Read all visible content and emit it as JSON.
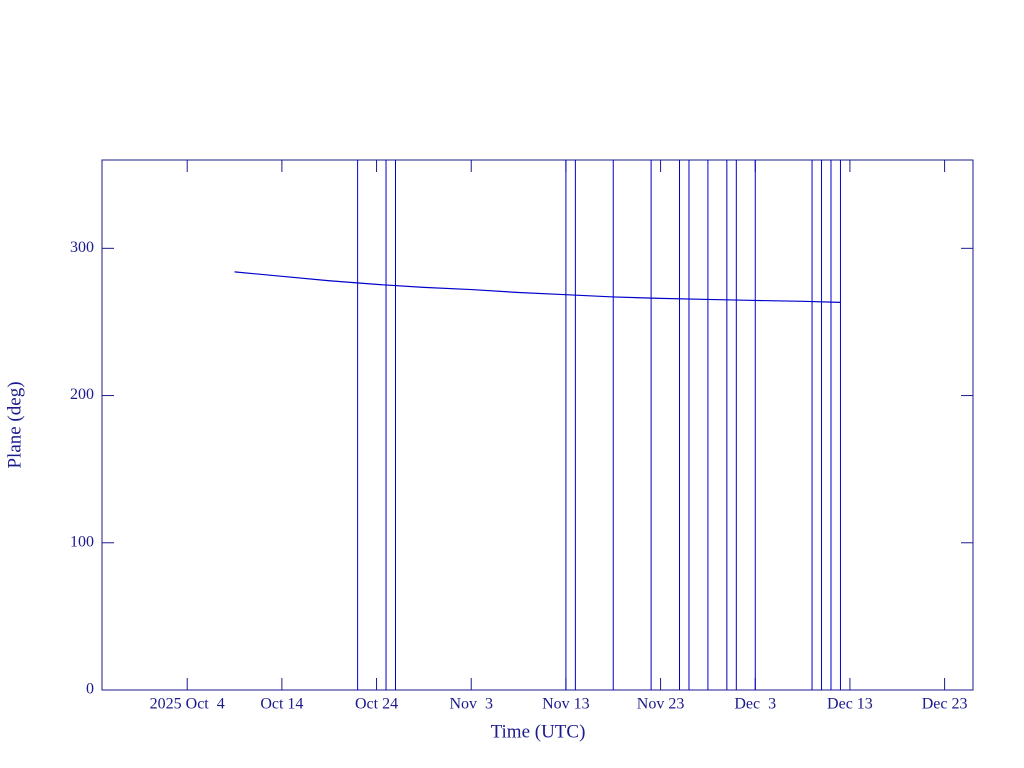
{
  "chart_data": {
    "type": "line",
    "xlabel": "Time (UTC)",
    "ylabel": "Plane (deg)",
    "x": [
      "2025-10-09",
      "2025-10-14",
      "2025-10-19",
      "2025-10-24",
      "2025-10-29",
      "2025-11-03",
      "2025-11-08",
      "2025-11-13",
      "2025-11-18",
      "2025-11-23",
      "2025-11-28",
      "2025-12-03",
      "2025-12-08",
      "2025-12-12"
    ],
    "series": [
      {
        "color": "#0000cc",
        "values": [
          284,
          281,
          278,
          275.5,
          273.5,
          272,
          270,
          268.5,
          267,
          266,
          265.3,
          264.6,
          264,
          263.3
        ]
      }
    ],
    "events": [
      "2025-10-22",
      "2025-10-25",
      "2025-10-26",
      "2025-11-13",
      "2025-11-14",
      "2025-11-18",
      "2025-11-22",
      "2025-11-25",
      "2025-11-26",
      "2025-11-28",
      "2025-11-30",
      "2025-12-01",
      "2025-12-03",
      "2025-12-09",
      "2025-12-10",
      "2025-12-11",
      "2025-12-12"
    ],
    "event_color": "#0000cc",
    "axis_color": "#1a1a8c",
    "xlim": [
      "2025-09-25",
      "2025-12-26"
    ],
    "xticks": [
      {
        "value": "2025-10-04",
        "label": "2025 Oct  4"
      },
      {
        "value": "2025-10-14",
        "label": "Oct 14"
      },
      {
        "value": "2025-10-24",
        "label": "Oct 24"
      },
      {
        "value": "2025-11-03",
        "label": "Nov  3"
      },
      {
        "value": "2025-11-13",
        "label": "Nov 13"
      },
      {
        "value": "2025-11-23",
        "label": "Nov 23"
      },
      {
        "value": "2025-12-03",
        "label": "Dec  3"
      },
      {
        "value": "2025-12-13",
        "label": "Dec 13"
      },
      {
        "value": "2025-12-23",
        "label": "Dec 23"
      }
    ],
    "ylim": [
      0,
      360
    ],
    "yticks": [
      0,
      100,
      200,
      300
    ]
  }
}
